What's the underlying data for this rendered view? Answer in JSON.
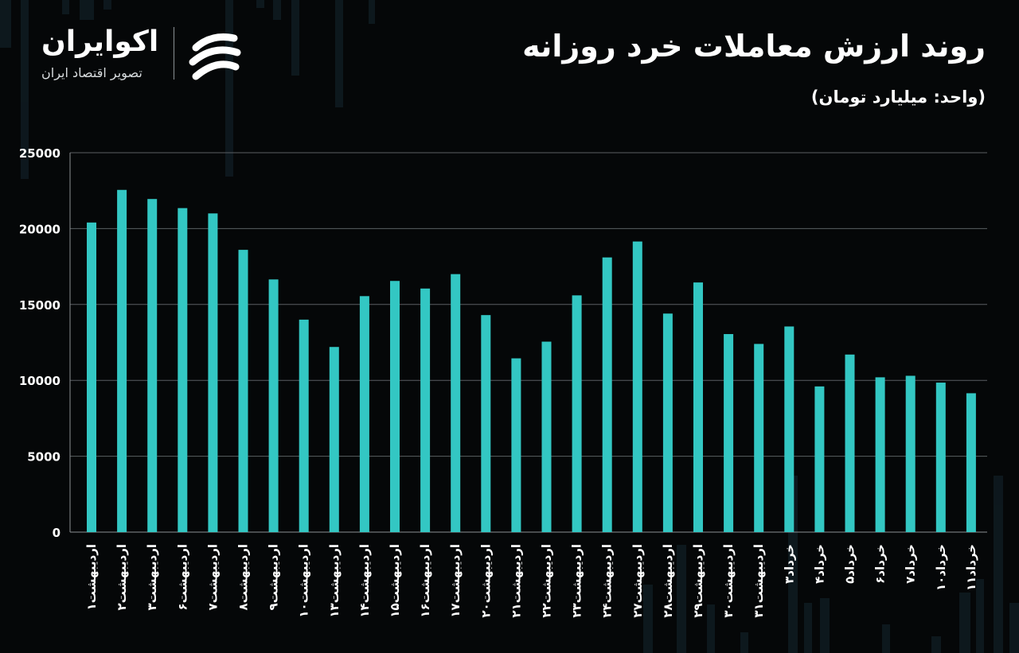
{
  "header": {
    "title": "روند ارزش معاملات خرد روزانه",
    "unit": "(واحد: میلیارد تومان)"
  },
  "brand": {
    "name": "اکوایران",
    "tagline": "تصویر اقتصاد ایران",
    "logo_icon": "ecoiran-swirl-logo-icon"
  },
  "colors": {
    "background": "#050708",
    "bar": "#33c7c3",
    "grid": "#5a5f62",
    "text": "#ffffff"
  },
  "chart_data": {
    "type": "bar",
    "title": "روند ارزش معاملات خرد روزانه",
    "ylabel": "",
    "xlabel": "",
    "ylim": [
      0,
      25000
    ],
    "yticks": [
      0,
      5000,
      10000,
      15000,
      20000,
      25000
    ],
    "ytick_labels": [
      "0",
      "5000",
      "10000",
      "15000",
      "20000",
      "25000"
    ],
    "grid": true,
    "categories": [
      "اردیبهشت۱",
      "اردیبهشت۲",
      "اردیبهشت۳",
      "اردیبهشت۶",
      "اردیبهشت۷",
      "اردیبهشت۸",
      "اردیبهشت۹",
      "اردیبهشت۱۰",
      "اردیبهشت۱۳",
      "اردیبهشت۱۴",
      "اردیبهشت۱۵",
      "اردیبهشت۱۶",
      "اردیبهشت۱۷",
      "اردیبهشت۲۰",
      "اردیبهشت۲۱",
      "اردیبهشت۲۲",
      "اردیبهشت۲۳",
      "اردیبهشت۲۴",
      "اردیبهشت۲۷",
      "اردیبهشت۲۸",
      "اردیبهشت۲۹",
      "اردیبهشت۳۰",
      "اردیبهشت۳۱",
      "خرداد۳",
      "خرداد۴",
      "خرداد۵",
      "خرداد۶",
      "خرداد۷",
      "خرداد۱۰",
      "خرداد۱۱"
    ],
    "values": [
      20400,
      22550,
      21950,
      21350,
      21000,
      18600,
      16650,
      14000,
      12200,
      15550,
      16550,
      16050,
      17000,
      14300,
      11450,
      12550,
      15600,
      18100,
      19150,
      14400,
      16450,
      13050,
      12400,
      13550,
      9600,
      11700,
      10200,
      10300,
      9850,
      9150
    ]
  }
}
